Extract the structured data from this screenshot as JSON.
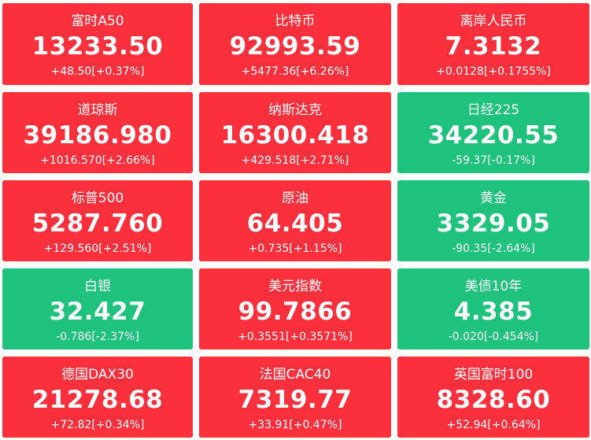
{
  "colors": {
    "up": "#fc2f3d",
    "down": "#1ec27c",
    "text": "#ffffff"
  },
  "tiles": [
    {
      "name": "富时A50",
      "price": "13233.50",
      "change": "+48.50[+0.37%]",
      "trend": "up"
    },
    {
      "name": "比特币",
      "price": "92993.59",
      "change": "+5477.36[+6.26%]",
      "trend": "up"
    },
    {
      "name": "离岸人民币",
      "price": "7.3132",
      "change": "+0.0128[+0.1755%]",
      "trend": "up"
    },
    {
      "name": "道琼斯",
      "price": "39186.980",
      "change": "+1016.570[+2.66%]",
      "trend": "up"
    },
    {
      "name": "纳斯达克",
      "price": "16300.418",
      "change": "+429.518[+2.71%]",
      "trend": "up"
    },
    {
      "name": "日经225",
      "price": "34220.55",
      "change": "-59.37[-0.17%]",
      "trend": "down"
    },
    {
      "name": "标普500",
      "price": "5287.760",
      "change": "+129.560[+2.51%]",
      "trend": "up"
    },
    {
      "name": "原油",
      "price": "64.405",
      "change": "+0.735[+1.15%]",
      "trend": "up"
    },
    {
      "name": "黄金",
      "price": "3329.05",
      "change": "-90.35[-2.64%]",
      "trend": "down"
    },
    {
      "name": "白银",
      "price": "32.427",
      "change": "-0.786[-2.37%]",
      "trend": "down"
    },
    {
      "name": "美元指数",
      "price": "99.7866",
      "change": "+0.3551[+0.3571%]",
      "trend": "up"
    },
    {
      "name": "美债10年",
      "price": "4.385",
      "change": "-0.020[-0.454%]",
      "trend": "down"
    },
    {
      "name": "德国DAX30",
      "price": "21278.68",
      "change": "+72.82[+0.34%]",
      "trend": "up"
    },
    {
      "name": "法国CAC40",
      "price": "7319.77",
      "change": "+33.91[+0.47%]",
      "trend": "up"
    },
    {
      "name": "英国富时100",
      "price": "8328.60",
      "change": "+52.94[+0.64%]",
      "trend": "up"
    }
  ]
}
